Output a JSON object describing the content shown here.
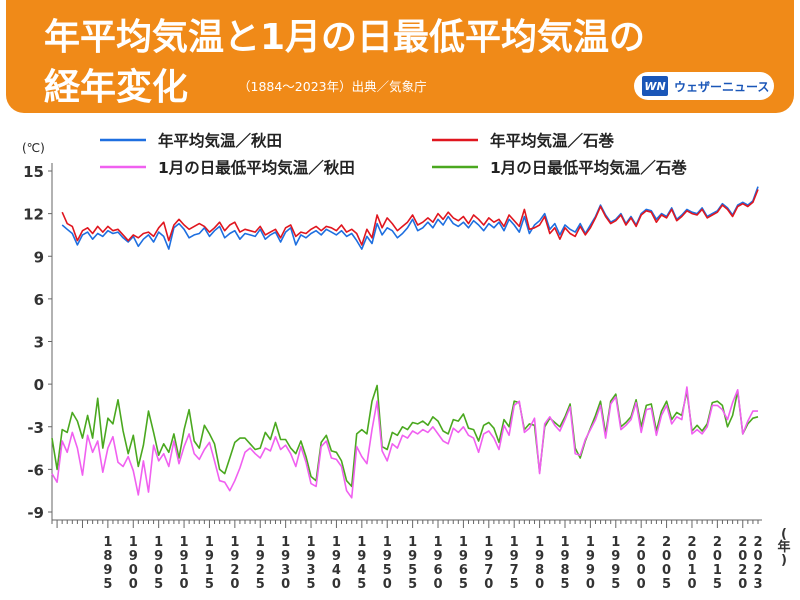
{
  "header": {
    "title_line1": "年平均気温と1月の日最低平均気温の",
    "title_line2": "経年変化",
    "subtitle": "（1884〜2023年）出典／気象庁",
    "brand": "ウェザーニュース",
    "brand_logo": "WN"
  },
  "colors": {
    "header_bg": "#f08a18",
    "akita_annual": "#1e6fe0",
    "ishinomaki_annual": "#e0161f",
    "akita_jan": "#f060f0",
    "ishinomaki_jan": "#4aa81f"
  },
  "chart_data": {
    "type": "line",
    "unit_label": "(℃)",
    "x_unit_label": "(年)",
    "ylim": [
      -9,
      15
    ],
    "yticks": [
      15,
      12,
      9,
      6,
      3,
      0,
      -3,
      -6,
      -9
    ],
    "xlim": [
      1884,
      2023
    ],
    "xticks": [
      1895,
      1900,
      1905,
      1910,
      1915,
      1920,
      1925,
      1930,
      1935,
      1940,
      1945,
      1950,
      1955,
      1960,
      1965,
      1970,
      1975,
      1980,
      1985,
      1990,
      1995,
      2000,
      2005,
      2010,
      2015,
      2020,
      2023
    ],
    "grid": false,
    "legend": "top",
    "series": [
      {
        "name": "年平均気温／秋田",
        "color": "#1e6fe0",
        "start_year": 1886,
        "values": [
          11.2,
          10.9,
          10.6,
          9.8,
          10.5,
          10.7,
          10.2,
          10.6,
          10.4,
          10.8,
          10.6,
          10.7,
          10.3,
          10.0,
          10.4,
          9.7,
          10.2,
          10.5,
          10.0,
          10.7,
          10.4,
          9.5,
          11.0,
          11.3,
          10.9,
          10.3,
          10.5,
          10.6,
          11.0,
          10.4,
          10.8,
          11.1,
          10.3,
          10.6,
          10.8,
          10.2,
          10.6,
          10.5,
          10.4,
          10.9,
          10.2,
          10.5,
          10.7,
          10.0,
          10.7,
          11.0,
          9.8,
          10.5,
          10.3,
          10.6,
          10.8,
          10.5,
          10.9,
          10.7,
          10.5,
          10.8,
          10.4,
          10.6,
          10.1,
          9.5,
          10.4,
          9.9,
          11.3,
          10.5,
          11.0,
          10.8,
          10.3,
          10.6,
          11.0,
          11.6,
          10.8,
          11.0,
          11.4,
          11.0,
          11.6,
          11.2,
          11.8,
          11.3,
          11.1,
          11.4,
          11.0,
          11.5,
          11.2,
          10.8,
          11.3,
          11.0,
          11.4,
          10.8,
          11.6,
          11.2,
          10.7,
          11.8,
          10.6,
          11.2,
          11.5,
          12.0,
          10.9,
          11.3,
          10.5,
          11.2,
          10.9,
          10.7,
          11.3,
          10.6,
          11.2,
          11.8,
          12.6,
          11.9,
          11.4,
          11.6,
          12.0,
          11.3,
          11.8,
          11.2,
          12.0,
          12.3,
          12.2,
          11.6,
          12.0,
          11.8,
          12.4,
          11.6,
          11.9,
          12.3,
          12.1,
          12.0,
          12.4,
          11.8,
          12.0,
          12.2,
          12.7,
          12.4,
          11.9,
          12.6,
          12.8,
          12.6,
          12.9,
          13.9
        ]
      },
      {
        "name": "年平均気温／石巻",
        "color": "#e0161f",
        "start_year": 1886,
        "values": [
          12.1,
          11.3,
          11.1,
          10.1,
          10.8,
          11.0,
          10.6,
          11.1,
          10.7,
          11.1,
          10.8,
          10.9,
          10.5,
          10.1,
          10.5,
          10.3,
          10.6,
          10.7,
          10.4,
          11.0,
          11.4,
          10.1,
          11.2,
          11.6,
          11.2,
          10.9,
          11.1,
          11.3,
          11.1,
          10.7,
          11.0,
          11.4,
          10.8,
          11.2,
          11.4,
          10.7,
          10.9,
          10.8,
          10.7,
          11.1,
          10.5,
          10.7,
          10.9,
          10.3,
          11.0,
          11.2,
          10.4,
          10.7,
          10.6,
          10.9,
          11.1,
          10.8,
          11.1,
          11.0,
          10.8,
          11.2,
          10.7,
          10.9,
          10.6,
          9.8,
          10.9,
          10.3,
          11.9,
          11.0,
          11.7,
          11.3,
          10.8,
          11.1,
          11.4,
          11.9,
          11.2,
          11.4,
          11.7,
          11.4,
          12.0,
          11.6,
          12.1,
          11.7,
          11.5,
          11.8,
          11.3,
          11.9,
          11.6,
          11.2,
          11.7,
          11.4,
          11.6,
          11.1,
          11.9,
          11.5,
          11.1,
          12.3,
          10.9,
          11.0,
          11.2,
          11.8,
          10.6,
          11.0,
          10.2,
          11.0,
          10.6,
          10.4,
          11.1,
          10.5,
          11.0,
          11.7,
          12.5,
          11.8,
          11.3,
          11.5,
          11.9,
          11.2,
          11.7,
          11.1,
          11.9,
          12.2,
          12.1,
          11.4,
          11.9,
          11.7,
          12.3,
          11.5,
          11.8,
          12.2,
          12.0,
          11.9,
          12.3,
          11.7,
          11.9,
          12.1,
          12.6,
          12.3,
          11.8,
          12.5,
          12.7,
          12.5,
          12.8,
          13.7
        ]
      },
      {
        "name": "1月の日最低平均気温／秋田",
        "color": "#f060f0",
        "start_year": 1884,
        "values": [
          -6.3,
          -6.9,
          -4.0,
          -4.8,
          -3.4,
          -4.5,
          -6.4,
          -3.6,
          -4.8,
          -4.0,
          -6.2,
          -4.5,
          -3.7,
          -5.5,
          -5.8,
          -5.1,
          -6.1,
          -7.8,
          -5.4,
          -7.6,
          -4.3,
          -5.4,
          -4.9,
          -5.8,
          -4.0,
          -5.6,
          -4.4,
          -3.5,
          -4.9,
          -5.3,
          -4.6,
          -4.1,
          -5.4,
          -6.8,
          -6.9,
          -7.5,
          -6.8,
          -5.9,
          -4.8,
          -4.5,
          -4.9,
          -5.2,
          -4.5,
          -4.7,
          -3.7,
          -4.6,
          -4.3,
          -4.9,
          -5.8,
          -4.4,
          -5.5,
          -7.0,
          -7.2,
          -4.4,
          -4.0,
          -5.2,
          -5.3,
          -5.8,
          -7.5,
          -8.0,
          -4.4,
          -5.1,
          -5.6,
          -3.2,
          -1.2,
          -4.7,
          -5.4,
          -4.2,
          -4.5,
          -3.6,
          -3.8,
          -3.3,
          -3.5,
          -3.2,
          -3.4,
          -3.0,
          -3.5,
          -4.0,
          -4.2,
          -3.1,
          -3.4,
          -3.0,
          -3.6,
          -3.8,
          -4.8,
          -3.5,
          -3.3,
          -3.8,
          -4.6,
          -2.9,
          -3.6,
          -1.5,
          -1.2,
          -3.4,
          -3.1,
          -2.4,
          -6.3,
          -2.8,
          -2.3,
          -2.9,
          -3.3,
          -2.5,
          -1.6,
          -4.9,
          -5.0,
          -3.9,
          -3.2,
          -2.5,
          -1.5,
          -3.8,
          -1.4,
          -0.9,
          -3.2,
          -2.9,
          -2.5,
          -1.3,
          -3.4,
          -1.8,
          -1.7,
          -3.6,
          -2.2,
          -1.5,
          -2.8,
          -2.3,
          -2.5,
          -0.2,
          -3.5,
          -3.2,
          -3.5,
          -3.0,
          -1.5,
          -1.5,
          -1.8,
          -2.5,
          -1.3,
          -0.4,
          -3.5,
          -2.6,
          -1.9,
          -1.9
        ]
      },
      {
        "name": "1月の日最低平均気温／石巻",
        "color": "#4aa81f",
        "start_year": 1884,
        "values": [
          -3.8,
          -6.0,
          -3.2,
          -3.4,
          -2.0,
          -2.6,
          -3.8,
          -2.2,
          -3.8,
          -1.0,
          -4.5,
          -2.4,
          -2.8,
          -1.1,
          -3.3,
          -4.9,
          -3.6,
          -5.8,
          -4.3,
          -1.9,
          -3.4,
          -5.0,
          -4.2,
          -4.8,
          -3.5,
          -5.2,
          -3.2,
          -1.8,
          -4.0,
          -4.5,
          -2.9,
          -3.5,
          -4.2,
          -6.0,
          -6.3,
          -5.2,
          -4.1,
          -3.8,
          -3.8,
          -4.2,
          -4.6,
          -4.5,
          -3.4,
          -3.9,
          -2.7,
          -3.9,
          -3.9,
          -4.5,
          -4.9,
          -4.0,
          -5.1,
          -6.5,
          -6.8,
          -4.1,
          -3.6,
          -4.7,
          -4.8,
          -5.4,
          -6.8,
          -7.2,
          -3.5,
          -3.2,
          -3.5,
          -1.2,
          -0.1,
          -4.4,
          -4.6,
          -3.4,
          -3.6,
          -3.0,
          -3.2,
          -2.7,
          -2.8,
          -2.6,
          -2.9,
          -2.3,
          -2.6,
          -3.3,
          -3.5,
          -2.5,
          -2.6,
          -2.1,
          -3.1,
          -3.2,
          -4.0,
          -2.9,
          -2.7,
          -3.1,
          -4.1,
          -2.5,
          -3.0,
          -1.2,
          -1.3,
          -3.2,
          -2.8,
          -2.9,
          -6.2,
          -3.0,
          -2.4,
          -2.7,
          -3.0,
          -2.3,
          -1.4,
          -4.5,
          -5.2,
          -4.0,
          -3.1,
          -2.2,
          -1.2,
          -3.5,
          -1.2,
          -0.7,
          -3.0,
          -2.7,
          -2.3,
          -1.1,
          -3.0,
          -1.5,
          -1.4,
          -3.3,
          -1.9,
          -1.2,
          -2.5,
          -2.0,
          -2.2,
          -0.5,
          -3.3,
          -2.9,
          -3.3,
          -2.8,
          -1.3,
          -1.2,
          -1.5,
          -3.0,
          -2.2,
          -0.5,
          -3.5,
          -2.8,
          -2.4,
          -2.3
        ]
      }
    ]
  }
}
